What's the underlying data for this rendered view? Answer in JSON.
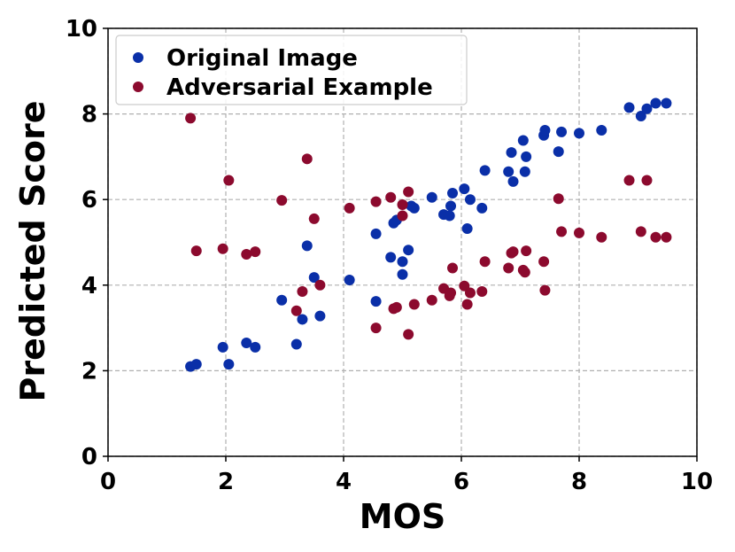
{
  "chart_data": {
    "type": "scatter",
    "title": "",
    "xlabel": "MOS",
    "ylabel": "Predicted Score",
    "xlim": [
      0,
      10
    ],
    "ylim": [
      0,
      10
    ],
    "xticks": [
      "0",
      "2",
      "4",
      "6",
      "8",
      "10"
    ],
    "yticks": [
      "0",
      "2",
      "4",
      "6",
      "8",
      "10"
    ],
    "grid": true,
    "legend_position": "top-left",
    "series": [
      {
        "name": "Original Image",
        "color": "#0a2fa8",
        "points": [
          [
            1.4,
            2.1
          ],
          [
            1.5,
            2.15
          ],
          [
            1.95,
            2.55
          ],
          [
            2.05,
            2.15
          ],
          [
            2.35,
            2.65
          ],
          [
            2.5,
            2.55
          ],
          [
            2.95,
            3.65
          ],
          [
            3.2,
            2.62
          ],
          [
            3.3,
            3.2
          ],
          [
            3.38,
            4.92
          ],
          [
            3.5,
            4.18
          ],
          [
            3.6,
            3.28
          ],
          [
            4.1,
            4.12
          ],
          [
            4.55,
            5.2
          ],
          [
            4.55,
            3.62
          ],
          [
            4.8,
            4.65
          ],
          [
            4.85,
            5.45
          ],
          [
            4.9,
            5.52
          ],
          [
            5.0,
            4.55
          ],
          [
            5.0,
            4.25
          ],
          [
            5.1,
            4.82
          ],
          [
            5.15,
            5.85
          ],
          [
            5.2,
            5.8
          ],
          [
            5.5,
            6.05
          ],
          [
            5.7,
            5.65
          ],
          [
            5.8,
            5.62
          ],
          [
            5.82,
            5.85
          ],
          [
            5.85,
            6.15
          ],
          [
            6.05,
            6.25
          ],
          [
            6.1,
            5.32
          ],
          [
            6.15,
            6.0
          ],
          [
            6.35,
            5.8
          ],
          [
            6.4,
            6.68
          ],
          [
            6.8,
            6.65
          ],
          [
            6.85,
            7.1
          ],
          [
            6.88,
            6.42
          ],
          [
            7.05,
            7.38
          ],
          [
            7.08,
            6.65
          ],
          [
            7.1,
            7.0
          ],
          [
            7.4,
            7.5
          ],
          [
            7.42,
            7.62
          ],
          [
            7.65,
            7.12
          ],
          [
            7.7,
            7.58
          ],
          [
            8.0,
            7.55
          ],
          [
            8.38,
            7.62
          ],
          [
            8.85,
            8.15
          ],
          [
            9.05,
            7.95
          ],
          [
            9.15,
            8.12
          ],
          [
            9.3,
            8.25
          ],
          [
            9.48,
            8.25
          ]
        ]
      },
      {
        "name": "Adversarial Example",
        "color": "#8c0a2e",
        "points": [
          [
            1.4,
            7.9
          ],
          [
            1.5,
            4.8
          ],
          [
            1.95,
            4.85
          ],
          [
            2.05,
            6.45
          ],
          [
            2.35,
            4.72
          ],
          [
            2.5,
            4.78
          ],
          [
            2.95,
            5.98
          ],
          [
            3.2,
            3.4
          ],
          [
            3.3,
            3.85
          ],
          [
            3.38,
            6.95
          ],
          [
            3.5,
            5.55
          ],
          [
            3.6,
            4.0
          ],
          [
            4.1,
            5.8
          ],
          [
            4.55,
            5.95
          ],
          [
            4.55,
            3.0
          ],
          [
            4.8,
            6.05
          ],
          [
            4.85,
            3.45
          ],
          [
            4.9,
            3.48
          ],
          [
            5.0,
            5.88
          ],
          [
            5.0,
            5.62
          ],
          [
            5.1,
            6.18
          ],
          [
            5.1,
            2.85
          ],
          [
            5.2,
            3.55
          ],
          [
            5.5,
            3.65
          ],
          [
            5.7,
            3.92
          ],
          [
            5.8,
            3.75
          ],
          [
            5.82,
            3.82
          ],
          [
            5.85,
            4.4
          ],
          [
            6.05,
            3.98
          ],
          [
            6.1,
            3.55
          ],
          [
            6.15,
            3.82
          ],
          [
            6.35,
            3.85
          ],
          [
            6.4,
            4.55
          ],
          [
            6.8,
            4.4
          ],
          [
            6.85,
            4.75
          ],
          [
            6.88,
            4.78
          ],
          [
            7.05,
            4.35
          ],
          [
            7.08,
            4.3
          ],
          [
            7.1,
            4.8
          ],
          [
            7.4,
            4.55
          ],
          [
            7.42,
            3.88
          ],
          [
            7.65,
            6.02
          ],
          [
            7.7,
            5.25
          ],
          [
            8.0,
            5.22
          ],
          [
            8.38,
            5.12
          ],
          [
            8.85,
            6.45
          ],
          [
            9.05,
            5.25
          ],
          [
            9.15,
            6.45
          ],
          [
            9.3,
            5.12
          ],
          [
            9.48,
            5.12
          ]
        ]
      }
    ]
  }
}
